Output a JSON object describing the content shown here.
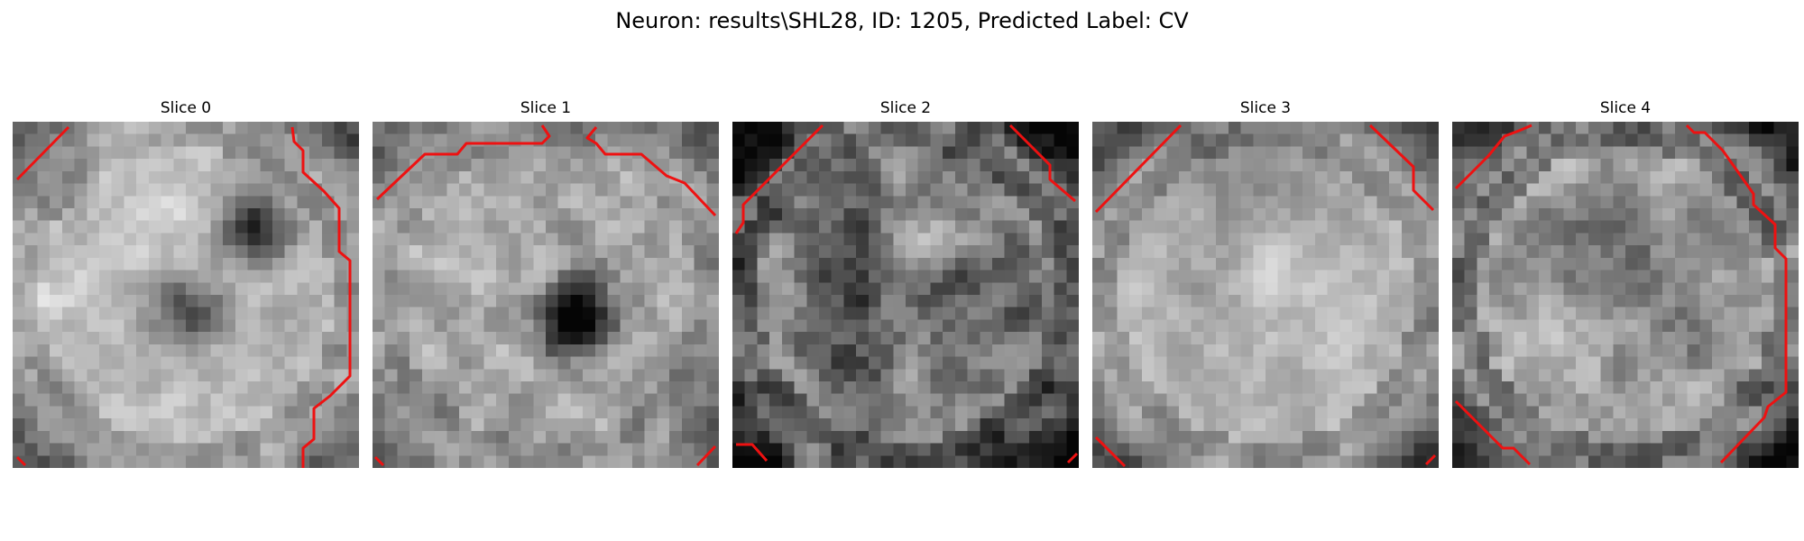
{
  "figure": {
    "title": "Neuron: results\\SHL28, ID: 1205, Predicted Label: CV"
  },
  "slices": [
    {
      "title": "Slice 0"
    },
    {
      "title": "Slice 1"
    },
    {
      "title": "Slice 2"
    },
    {
      "title": "Slice 3"
    },
    {
      "title": "Slice 4"
    }
  ],
  "colors": {
    "contour": "#ee1111",
    "background": "#ffffff"
  }
}
